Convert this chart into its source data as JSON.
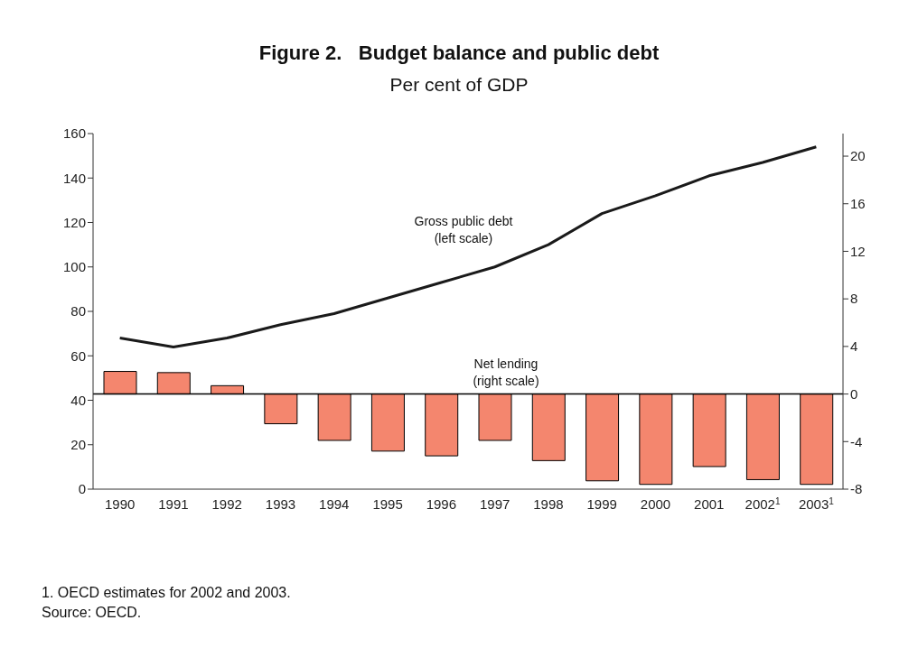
{
  "chart_data": {
    "type": "bar",
    "title": "Figure 2.   Budget balance and public debt",
    "subtitle": "Per cent of GDP",
    "categories": [
      "1990",
      "1991",
      "1992",
      "1993",
      "1994",
      "1995",
      "1996",
      "1997",
      "1998",
      "1999",
      "2000",
      "2001",
      "2002$^{1}$",
      "2003$^{1}$"
    ],
    "series": [
      {
        "name": "Net lending\n(right scale)",
        "axis": "y2",
        "color": "#f4866e",
        "values": [
          1.9,
          1.8,
          0.7,
          -2.5,
          -3.9,
          -4.8,
          -5.2,
          -3.9,
          -5.6,
          -7.3,
          -7.6,
          -6.1,
          -7.2,
          -7.6
        ]
      },
      {
        "name": "Gross public debt\n(left scale)",
        "type": "line",
        "color": "#1a1a1a",
        "values": [
          68,
          64,
          68,
          74,
          79,
          86,
          93,
          100,
          110,
          124,
          132,
          141,
          147,
          154
        ]
      }
    ],
    "ylim": [
      0,
      160
    ],
    "yticks": [
      0,
      20,
      40,
      60,
      80,
      100,
      120,
      140,
      160
    ],
    "y2lim": [
      -8,
      21.9
    ],
    "y2ticks": [
      -8,
      -4,
      0,
      4,
      8,
      12,
      16,
      20
    ],
    "ref_lines": [
      {
        "axis": "y2",
        "value": 0,
        "color": "#000000"
      }
    ],
    "grid": false,
    "legend": false,
    "marker": "none",
    "line_style": "solid",
    "annotations": [
      "1. OECD estimates for 2002 and 2003.",
      "Source: OECD."
    ]
  }
}
